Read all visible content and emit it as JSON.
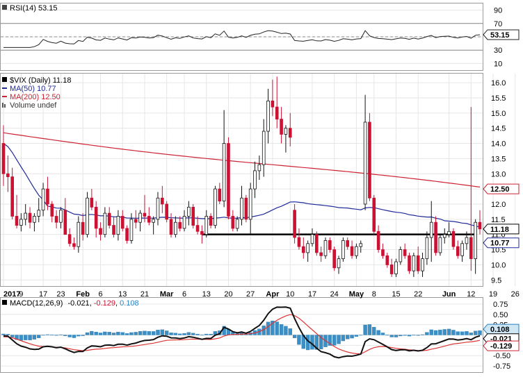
{
  "rsi": {
    "label": "RSI(14) 53.15",
    "value_tag": "53.15",
    "ticks": [
      "90",
      "70",
      "50",
      "30",
      "10"
    ],
    "colors": {
      "line": "#222222",
      "tag_stroke": "#222222"
    }
  },
  "price": {
    "legend": [
      {
        "text": "$VIX (Daily) 11.18",
        "color": "#000000",
        "icon": "candlestick-icon"
      },
      {
        "text": "MA(50) 10.77",
        "color": "#1f2a9a",
        "icon": "line-icon"
      },
      {
        "text": "MA(200) 12.50",
        "color": "#cc2233",
        "icon": "line-icon"
      },
      {
        "text": "Volume undef",
        "color": "#555555",
        "icon": "bars-icon"
      }
    ],
    "ticks": [
      "16.0",
      "15.5",
      "15.0",
      "14.5",
      "14.0",
      "13.5",
      "13.0",
      "12.5",
      "12.0",
      "11.5",
      "11.0",
      "10.5",
      "10.0",
      "9.5"
    ],
    "tags": {
      "last": "11.18",
      "ma200": "12.50",
      "ma50": "10.77"
    },
    "colors": {
      "up": "#ffffff",
      "up_stroke": "#111111",
      "down": "#cc1133",
      "ma50": "#1f2a9a",
      "ma200": "#cc2233",
      "support": "#000000"
    },
    "support_level": 11.0
  },
  "xaxis": {
    "labels": [
      {
        "text": "2017",
        "i": 0,
        "bold": true
      },
      {
        "text": "9",
        "i": 4
      },
      {
        "text": "17",
        "i": 9
      },
      {
        "text": "23",
        "i": 13
      },
      {
        "text": "Feb",
        "i": 18,
        "bold": true
      },
      {
        "text": "6",
        "i": 22
      },
      {
        "text": "13",
        "i": 27
      },
      {
        "text": "21",
        "i": 32
      },
      {
        "text": "Mar",
        "i": 37,
        "bold": true
      },
      {
        "text": "6",
        "i": 41
      },
      {
        "text": "13",
        "i": 46
      },
      {
        "text": "20",
        "i": 51
      },
      {
        "text": "27",
        "i": 56
      },
      {
        "text": "Apr",
        "i": 61,
        "bold": true
      },
      {
        "text": "10",
        "i": 65
      },
      {
        "text": "17",
        "i": 70
      },
      {
        "text": "24",
        "i": 75
      },
      {
        "text": "May",
        "i": 80,
        "bold": true
      },
      {
        "text": "8",
        "i": 84
      },
      {
        "text": "15",
        "i": 89
      },
      {
        "text": "22",
        "i": 94
      },
      {
        "text": "Jun",
        "i": 101,
        "bold": true
      },
      {
        "text": "12",
        "i": 106
      },
      {
        "text": "19",
        "i": 111
      },
      {
        "text": "26",
        "i": 116
      }
    ]
  },
  "macd": {
    "label": "MACD(12,26,9)",
    "val_macd": "-0.021",
    "val_signal": "-0.129",
    "val_hist": "0.108",
    "ticks": [
      "0.75",
      "0.50",
      "0.25",
      "0.00",
      "-0.25",
      "-0.50",
      "-0.75"
    ],
    "tags": {
      "hist": "0.108",
      "macd": "-0.021",
      "signal": "-0.129"
    },
    "colors": {
      "macd": "#111111",
      "signal": "#dd3333",
      "hist": "#3a8fc6",
      "signal_text": "#cc1133",
      "hist_text": "#2a7fbf"
    }
  },
  "chart_data": {
    "type": "candlestick",
    "title": "$VIX (Daily)",
    "x_range": [
      "2017-01-03",
      "2017-06-30"
    ],
    "ylim": [
      9.3,
      16.3
    ],
    "ohlc_approx": [
      [
        14.0,
        14.6,
        12.6,
        13.0
      ],
      [
        13.0,
        13.6,
        12.4,
        12.9
      ],
      [
        12.9,
        13.2,
        11.5,
        11.6
      ],
      [
        11.6,
        12.3,
        11.2,
        11.3
      ],
      [
        11.3,
        11.7,
        11.1,
        11.5
      ],
      [
        11.5,
        12.0,
        11.3,
        11.7
      ],
      [
        11.7,
        11.9,
        11.2,
        11.4
      ],
      [
        11.4,
        11.7,
        11.1,
        11.6
      ],
      [
        11.6,
        12.2,
        11.4,
        11.8
      ],
      [
        11.8,
        12.7,
        11.6,
        12.5
      ],
      [
        12.5,
        12.9,
        11.8,
        12.0
      ],
      [
        12.0,
        12.1,
        11.4,
        11.6
      ],
      [
        11.6,
        11.8,
        11.2,
        11.4
      ],
      [
        11.4,
        11.9,
        11.2,
        11.8
      ],
      [
        11.8,
        12.2,
        11.0,
        11.0
      ],
      [
        11.0,
        11.2,
        10.6,
        10.7
      ],
      [
        10.7,
        10.9,
        10.5,
        10.6
      ],
      [
        10.6,
        11.6,
        10.4,
        11.4
      ],
      [
        11.4,
        11.7,
        10.8,
        11.0
      ],
      [
        11.0,
        12.4,
        10.9,
        12.2
      ],
      [
        12.2,
        12.5,
        11.8,
        11.9
      ],
      [
        11.9,
        12.1,
        10.9,
        11.2
      ],
      [
        11.2,
        11.4,
        10.8,
        11.0
      ],
      [
        11.0,
        11.9,
        10.9,
        11.7
      ],
      [
        11.7,
        11.9,
        11.2,
        11.3
      ],
      [
        11.3,
        11.6,
        10.9,
        11.0
      ],
      [
        11.0,
        11.8,
        10.8,
        11.6
      ],
      [
        11.6,
        11.8,
        11.1,
        11.2
      ],
      [
        11.2,
        11.3,
        10.7,
        10.8
      ],
      [
        10.8,
        11.7,
        10.7,
        11.5
      ],
      [
        11.5,
        11.8,
        11.2,
        11.4
      ],
      [
        11.4,
        11.8,
        11.1,
        11.7
      ],
      [
        11.7,
        12.3,
        11.4,
        11.6
      ],
      [
        11.6,
        11.9,
        11.3,
        11.4
      ],
      [
        11.4,
        11.6,
        11.0,
        11.5
      ],
      [
        11.5,
        12.4,
        11.3,
        12.2
      ],
      [
        12.2,
        12.6,
        11.7,
        12.0
      ],
      [
        12.0,
        12.1,
        11.4,
        11.5
      ],
      [
        11.5,
        11.7,
        10.9,
        11.0
      ],
      [
        11.0,
        11.6,
        10.9,
        11.4
      ],
      [
        11.4,
        11.6,
        11.1,
        11.2
      ],
      [
        11.2,
        11.8,
        11.1,
        11.6
      ],
      [
        11.6,
        12.1,
        11.3,
        11.9
      ],
      [
        11.9,
        12.0,
        11.2,
        11.3
      ],
      [
        11.3,
        11.6,
        11.0,
        11.1
      ],
      [
        11.1,
        11.3,
        10.7,
        11.0
      ],
      [
        11.0,
        11.8,
        10.9,
        11.6
      ],
      [
        11.6,
        11.7,
        11.2,
        11.3
      ],
      [
        11.3,
        12.6,
        11.2,
        12.5
      ],
      [
        12.5,
        12.7,
        12.0,
        12.1
      ],
      [
        12.1,
        15.1,
        11.9,
        14.0
      ],
      [
        14.0,
        14.2,
        11.5,
        11.6
      ],
      [
        11.6,
        11.8,
        11.1,
        11.2
      ],
      [
        11.2,
        11.6,
        11.1,
        11.5
      ],
      [
        11.5,
        12.6,
        11.3,
        12.2
      ],
      [
        12.2,
        12.3,
        11.4,
        11.5
      ],
      [
        11.5,
        12.7,
        11.0,
        12.5
      ],
      [
        12.5,
        13.4,
        12.2,
        13.1
      ],
      [
        13.1,
        13.6,
        12.8,
        13.3
      ],
      [
        13.3,
        14.8,
        12.9,
        14.4
      ],
      [
        14.4,
        15.8,
        14.0,
        15.4
      ],
      [
        15.4,
        16.1,
        14.9,
        15.2
      ],
      [
        15.2,
        16.2,
        14.5,
        14.8
      ],
      [
        14.8,
        15.2,
        14.0,
        14.3
      ],
      [
        14.3,
        14.6,
        13.7,
        14.5
      ],
      [
        14.5,
        15.0,
        13.9,
        14.2
      ],
      [
        11.8,
        12.0,
        10.7,
        10.9
      ],
      [
        10.9,
        11.2,
        10.5,
        10.6
      ],
      [
        10.6,
        10.9,
        10.2,
        10.4
      ],
      [
        10.4,
        10.8,
        10.1,
        10.7
      ],
      [
        10.7,
        11.2,
        10.6,
        11.0
      ],
      [
        11.0,
        11.1,
        10.3,
        10.4
      ],
      [
        10.4,
        10.6,
        10.1,
        10.3
      ],
      [
        10.3,
        10.9,
        10.2,
        10.8
      ],
      [
        10.8,
        10.9,
        10.4,
        10.5
      ],
      [
        10.5,
        10.6,
        9.8,
        9.9
      ],
      [
        9.9,
        10.3,
        9.7,
        10.2
      ],
      [
        10.2,
        10.9,
        10.1,
        10.8
      ],
      [
        10.8,
        10.9,
        10.5,
        10.6
      ],
      [
        10.6,
        10.8,
        10.2,
        10.3
      ],
      [
        10.3,
        10.7,
        10.2,
        10.6
      ],
      [
        10.6,
        10.8,
        10.4,
        10.7
      ],
      [
        12.0,
        15.6,
        11.8,
        14.7
      ],
      [
        14.7,
        15.0,
        12.1,
        12.2
      ],
      [
        12.2,
        12.3,
        11.0,
        11.1
      ],
      [
        11.1,
        11.3,
        10.4,
        10.5
      ],
      [
        10.5,
        10.7,
        10.2,
        10.3
      ],
      [
        10.3,
        10.4,
        9.9,
        10.0
      ],
      [
        10.0,
        10.2,
        9.6,
        9.7
      ],
      [
        9.7,
        10.2,
        9.6,
        10.1
      ],
      [
        10.1,
        10.6,
        10.0,
        10.5
      ],
      [
        10.5,
        10.7,
        10.2,
        10.3
      ],
      [
        10.3,
        10.4,
        9.7,
        9.8
      ],
      [
        9.8,
        10.4,
        9.6,
        10.3
      ],
      [
        10.3,
        10.6,
        9.7,
        9.8
      ],
      [
        9.8,
        10.4,
        9.6,
        10.2
      ],
      [
        10.2,
        11.1,
        10.0,
        10.9
      ],
      [
        10.9,
        12.1,
        10.1,
        11.4
      ],
      [
        11.4,
        11.6,
        10.3,
        10.4
      ],
      [
        10.4,
        11.0,
        10.3,
        10.9
      ],
      [
        10.9,
        11.2,
        10.7,
        11.0
      ],
      [
        11.0,
        11.4,
        10.9,
        11.1
      ],
      [
        11.1,
        11.2,
        10.5,
        10.6
      ],
      [
        10.6,
        10.8,
        10.2,
        10.3
      ],
      [
        10.3,
        10.8,
        10.1,
        10.7
      ],
      [
        10.7,
        11.1,
        10.5,
        10.9
      ],
      [
        10.9,
        15.2,
        9.8,
        10.2
      ],
      [
        10.2,
        11.5,
        9.7,
        11.4
      ],
      [
        11.4,
        11.8,
        11.0,
        11.18
      ]
    ],
    "rsi": {
      "last": 53.15,
      "ylim": [
        0,
        100
      ],
      "levels": [
        30,
        50,
        70
      ]
    },
    "ma50_last": 10.77,
    "ma200_last": 12.5,
    "macd": {
      "macd": -0.021,
      "signal": -0.129,
      "histogram": 0.108,
      "ylim": [
        -0.9,
        0.9
      ]
    }
  }
}
